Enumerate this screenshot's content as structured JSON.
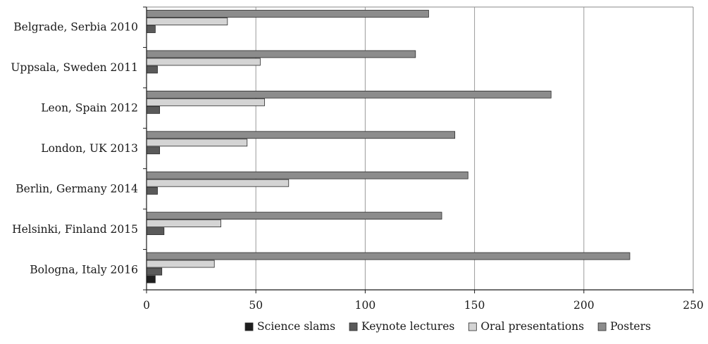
{
  "chart_data": {
    "type": "bar",
    "orientation": "horizontal",
    "title": "",
    "xlabel": "",
    "ylabel": "",
    "xlim": [
      0,
      250
    ],
    "x_ticks": [
      0,
      50,
      100,
      150,
      200,
      250
    ],
    "grid": "vertical",
    "legend_position": "bottom",
    "categories": [
      "Belgrade, Serbia 2010",
      "Uppsala, Sweden 2011",
      "Leon, Spain 2012",
      "London, UK 2013",
      "Berlin, Germany 2014",
      "Helsinki, Finland 2015",
      "Bologna, Italy 2016"
    ],
    "series": [
      {
        "name": "Science slams",
        "color": "#1e1e1e",
        "values": [
          0,
          0,
          0,
          0,
          0,
          0,
          4
        ]
      },
      {
        "name": "Keynote lectures",
        "color": "#5a5a5a",
        "values": [
          4,
          5,
          6,
          6,
          5,
          8,
          7
        ]
      },
      {
        "name": "Oral presentations",
        "color": "#d4d4d4",
        "values": [
          37,
          52,
          54,
          46,
          65,
          34,
          31
        ]
      },
      {
        "name": "Posters",
        "color": "#8c8c8c",
        "values": [
          129,
          123,
          185,
          141,
          147,
          135,
          221
        ]
      }
    ]
  }
}
